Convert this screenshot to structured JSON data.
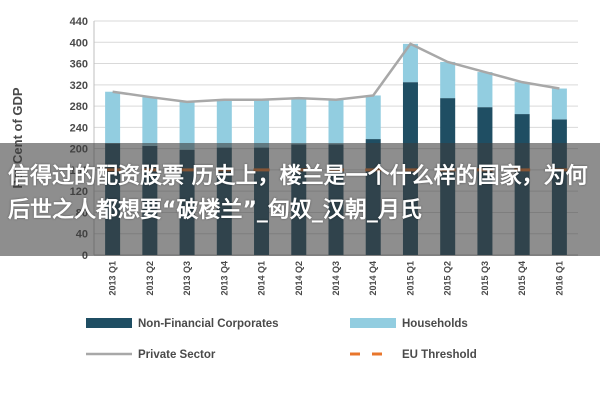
{
  "chart_data": {
    "type": "bar",
    "title": "",
    "xlabel": "",
    "ylabel": "Per Cent of GDP",
    "ylim": [
      0,
      440
    ],
    "yticks": [
      0,
      40,
      80,
      120,
      160,
      200,
      240,
      280,
      320,
      360,
      400,
      440
    ],
    "stacked": true,
    "grid": true,
    "categories": [
      "2013 Q1",
      "2013 Q2",
      "2013 Q3",
      "2013 Q4",
      "2014 Q1",
      "2014 Q2",
      "2014 Q3",
      "2014 Q4",
      "2015 Q1",
      "2015 Q2",
      "2015 Q3",
      "2015 Q4",
      "2016 Q1"
    ],
    "series": [
      {
        "name": "Non-Financial Corporates",
        "kind": "bar",
        "color": "#1f4e63",
        "values": [
          210,
          205,
          198,
          202,
          202,
          208,
          208,
          218,
          325,
          295,
          278,
          265,
          255
        ]
      },
      {
        "name": "Households",
        "kind": "bar",
        "color": "#92cde0",
        "values": [
          97,
          92,
          90,
          90,
          90,
          87,
          84,
          82,
          72,
          68,
          66,
          60,
          58
        ]
      },
      {
        "name": "Private Sector",
        "kind": "line",
        "color": "#a8a8a8",
        "values": [
          307,
          297,
          288,
          292,
          292,
          295,
          292,
          300,
          397,
          363,
          344,
          325,
          313
        ]
      },
      {
        "name": "EU Threshold",
        "kind": "dash",
        "color": "#e8762c",
        "values": [
          160,
          160,
          160,
          160,
          160,
          160,
          160,
          160,
          160,
          160,
          160,
          160,
          160
        ]
      }
    ],
    "legend_position": "bottom"
  },
  "overlay": {
    "caption": "信得过的配资股票 历史上，楼兰是一个什么样的国家，为何后世之人都想要“破楼兰”_匈奴_汉朝_月氏"
  }
}
